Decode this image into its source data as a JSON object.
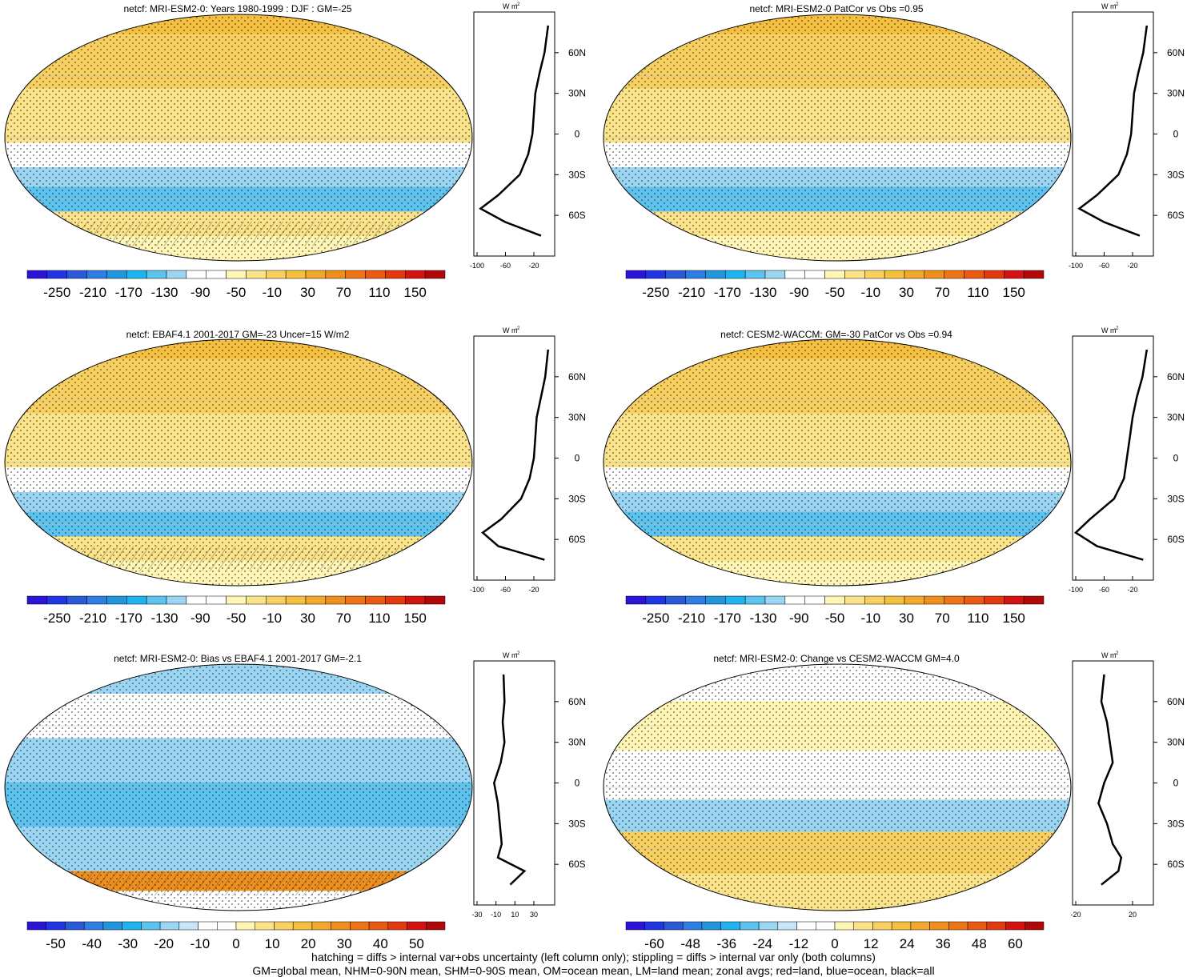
{
  "panels": [
    {
      "id": "p1",
      "title": "netcf: MRI-ESM2-0: Years 1980-1999 : DJF : GM=-25",
      "kind": "abs",
      "colorbar": {
        "ticks": [
          "-250",
          "-210",
          "-170",
          "-130",
          "-90",
          "-50",
          "-10",
          "30",
          "70",
          "110",
          "150"
        ]
      },
      "zonal": {
        "xticks": [
          "-100",
          "-60",
          "-20"
        ]
      }
    },
    {
      "id": "p2",
      "title": "netcf: MRI-ESM2-0 PatCor vs Obs =0.95",
      "kind": "abs",
      "colorbar": {
        "ticks": [
          "-250",
          "-210",
          "-170",
          "-130",
          "-90",
          "-50",
          "-10",
          "30",
          "70",
          "110",
          "150"
        ]
      },
      "zonal": {
        "xticks": [
          "-100",
          "-60",
          "-20"
        ]
      }
    },
    {
      "id": "p3",
      "title": "netcf: EBAF4.1 2001-2017 GM=-23 Uncer=15 W/m2",
      "kind": "abs",
      "colorbar": {
        "ticks": [
          "-250",
          "-210",
          "-170",
          "-130",
          "-90",
          "-50",
          "-10",
          "30",
          "70",
          "110",
          "150"
        ]
      },
      "zonal": {
        "xticks": [
          "-100",
          "-60",
          "-20"
        ]
      }
    },
    {
      "id": "p4",
      "title": "netcf: CESM2-WACCM: GM=-30 PatCor vs Obs =0.94",
      "kind": "abs",
      "colorbar": {
        "ticks": [
          "-250",
          "-210",
          "-170",
          "-130",
          "-90",
          "-50",
          "-10",
          "30",
          "70",
          "110",
          "150"
        ]
      },
      "zonal": {
        "xticks": [
          "-100",
          "-60",
          "-20"
        ]
      }
    },
    {
      "id": "p5",
      "title": "netcf: MRI-ESM2-0: Bias vs EBAF4.1 2001-2017 GM=-2.1",
      "kind": "bias",
      "colorbar": {
        "ticks": [
          "-50",
          "-40",
          "-30",
          "-20",
          "-10",
          "0",
          "10",
          "20",
          "30",
          "40",
          "50"
        ]
      },
      "zonal": {
        "xticks": [
          "-30",
          "-10",
          "10",
          "30"
        ]
      }
    },
    {
      "id": "p6",
      "title": "netcf: MRI-ESM2-0: Change vs CESM2-WACCM GM=4.0",
      "kind": "change",
      "colorbar": {
        "ticks": [
          "-60",
          "-48",
          "-36",
          "-24",
          "-12",
          "0",
          "12",
          "24",
          "36",
          "48",
          "60"
        ]
      },
      "zonal": {
        "xticks": [
          "-20",
          "20"
        ]
      }
    }
  ],
  "zonal_axis": {
    "unit": "W m",
    "unit_sup": "-2",
    "lat_ticks": [
      "60N",
      "30N",
      "0",
      "30S",
      "60S"
    ]
  },
  "chart_data": {
    "type": "heatmap",
    "description_units": "W m-2",
    "variable": "netcf",
    "panels": [
      {
        "title": "netcf: MRI-ESM2-0: Years 1980-1999 : DJF : GM=-25",
        "global_mean": -25,
        "colorbar_range": [
          -270,
          170
        ],
        "zonal_mean_all": {
          "lat": [
            80,
            60,
            45,
            30,
            15,
            0,
            -15,
            -30,
            -45,
            -55,
            -65,
            -75
          ],
          "value": [
            0,
            -5,
            -12,
            -18,
            -20,
            -22,
            -28,
            -40,
            -70,
            -95,
            -60,
            -10
          ]
        }
      },
      {
        "title": "netcf: MRI-ESM2-0 PatCor vs Obs =0.95",
        "pattern_correlation": 0.95,
        "colorbar_range": [
          -270,
          170
        ],
        "zonal_mean_all": {
          "lat": [
            80,
            60,
            45,
            30,
            15,
            0,
            -15,
            -30,
            -45,
            -55,
            -65,
            -75
          ],
          "value": [
            0,
            -5,
            -12,
            -18,
            -20,
            -22,
            -28,
            -40,
            -70,
            -95,
            -60,
            -10
          ]
        }
      },
      {
        "title": "netcf: EBAF4.1 2001-2017 GM=-23 Uncer=15 W/m2",
        "global_mean": -23,
        "uncertainty": 15,
        "colorbar_range": [
          -270,
          170
        ],
        "zonal_mean_all": {
          "lat": [
            80,
            60,
            45,
            30,
            15,
            0,
            -15,
            -30,
            -45,
            -55,
            -65,
            -75
          ],
          "value": [
            0,
            -4,
            -10,
            -16,
            -18,
            -20,
            -26,
            -38,
            -66,
            -92,
            -70,
            -5
          ]
        }
      },
      {
        "title": "netcf: CESM2-WACCM: GM=-30 PatCor vs Obs =0.94",
        "global_mean": -30,
        "pattern_correlation": 0.94,
        "colorbar_range": [
          -270,
          170
        ],
        "zonal_mean_all": {
          "lat": [
            80,
            60,
            45,
            30,
            15,
            0,
            -15,
            -30,
            -45,
            -55,
            -65,
            -75
          ],
          "value": [
            0,
            -6,
            -14,
            -20,
            -24,
            -28,
            -32,
            -46,
            -80,
            -100,
            -70,
            -5
          ]
        }
      },
      {
        "title": "netcf: MRI-ESM2-0: Bias vs EBAF4.1 2001-2017 GM=-2.1",
        "global_mean": -2.1,
        "colorbar_range": [
          -55,
          55
        ],
        "zonal_mean_all": {
          "lat": [
            80,
            60,
            45,
            30,
            15,
            0,
            -15,
            -30,
            -45,
            -55,
            -65,
            -75
          ],
          "value": [
            -2,
            -1,
            -3,
            -1,
            -5,
            -12,
            -8,
            -6,
            -4,
            -8,
            20,
            5
          ]
        }
      },
      {
        "title": "netcf: MRI-ESM2-0: Change vs CESM2-WACCM GM=4.0",
        "global_mean": 4.0,
        "colorbar_range": [
          -66,
          66
        ],
        "zonal_mean_all": {
          "lat": [
            80,
            60,
            45,
            30,
            15,
            0,
            -15,
            -30,
            -45,
            -55,
            -65,
            -75
          ],
          "value": [
            0,
            -2,
            2,
            4,
            6,
            0,
            -4,
            2,
            6,
            12,
            10,
            -2
          ]
        }
      }
    ]
  },
  "footer": {
    "line1": "hatching = diffs > internal var+obs uncertainty (left column only); stippling = diffs > internal var only (both columns)",
    "line2": "GM=global mean, NHM=0-90N mean, SHM=0-90S mean, OM=ocean mean, LM=land mean; zonal avgs; red=land, blue=ocean, black=all"
  },
  "palette": {
    "abs": [
      "#2a14d8",
      "#1f35e6",
      "#2a5ad8",
      "#2f7ee6",
      "#2196dc",
      "#1fb4f0",
      "#5cc2ee",
      "#9ad6f3",
      "#ffffff",
      "#ffffff",
      "#fff5b4",
      "#fbe38a",
      "#f8d060",
      "#f5c040",
      "#f2a82a",
      "#ef8f1e",
      "#ee7416",
      "#ea5a12",
      "#e23a0e",
      "#d41212",
      "#b00808"
    ],
    "bias": [
      "#2a14d8",
      "#1f35e6",
      "#2a5ad8",
      "#2f7ee6",
      "#2196dc",
      "#1fb4f0",
      "#5cc2ee",
      "#9ad6f3",
      "#c9e6f8",
      "#ffffff",
      "#ffffff",
      "#fff5b4",
      "#fbe38a",
      "#f8d060",
      "#f5c040",
      "#f2a82a",
      "#ef8f1e",
      "#ee7416",
      "#ea5a12",
      "#e23a0e",
      "#d41212",
      "#b00808"
    ]
  }
}
